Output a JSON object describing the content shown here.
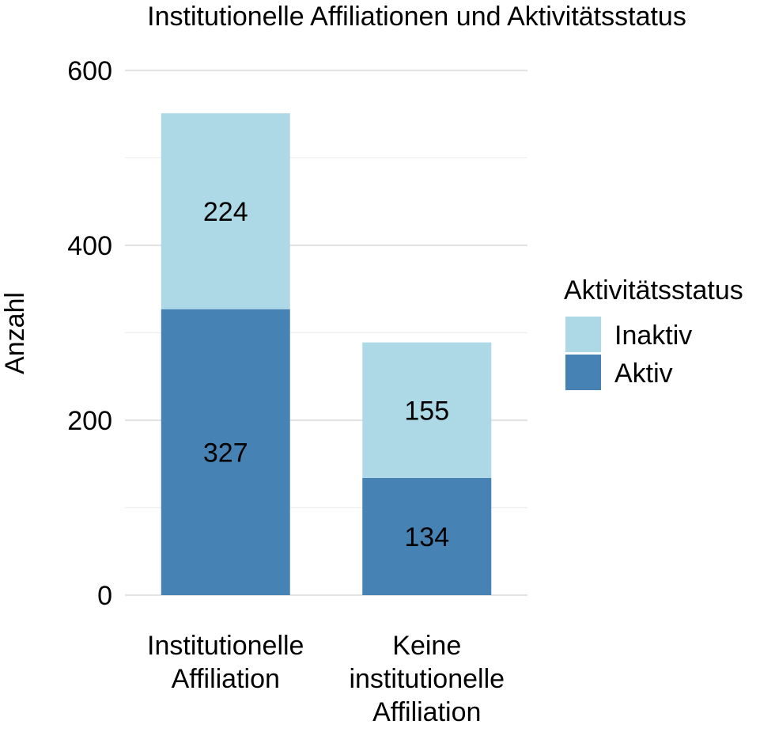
{
  "chart_data": {
    "type": "bar",
    "stacked": true,
    "title": "Institutionelle Affiliationen und Aktivitätsstatus",
    "xlabel": "",
    "ylabel": "Anzahl",
    "ylim": [
      0,
      600
    ],
    "y_ticks": [
      "0",
      "200",
      "400",
      "600"
    ],
    "grid": true,
    "categories": [
      [
        "Institutionelle",
        "Affiliation"
      ],
      [
        "Keine",
        "institutionelle",
        "Affiliation"
      ]
    ],
    "series": [
      {
        "name": "Aktiv",
        "color": "#4682B4",
        "values": [
          327,
          134
        ],
        "labels": [
          "327",
          "134"
        ]
      },
      {
        "name": "Inaktiv",
        "color": "#ADD8E6",
        "values": [
          224,
          155
        ],
        "labels": [
          "224",
          "155"
        ]
      }
    ],
    "legend": {
      "title": "Aktivitätsstatus",
      "position": "right",
      "entries": [
        {
          "label": "Inaktiv",
          "color": "#ADD8E6"
        },
        {
          "label": "Aktiv",
          "color": "#4682B4"
        }
      ]
    }
  }
}
